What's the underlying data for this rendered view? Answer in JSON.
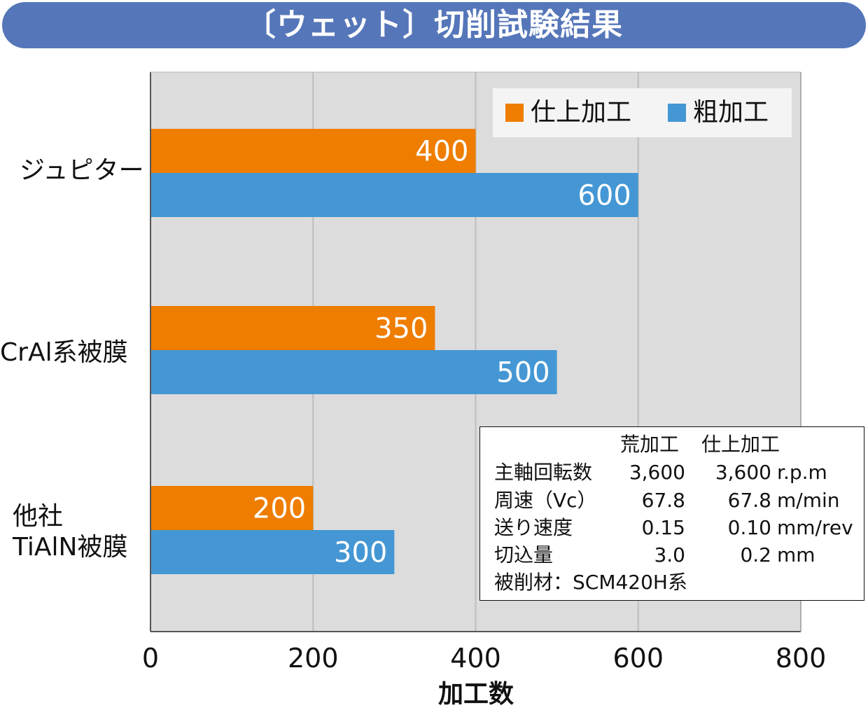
{
  "title": "〔ウェット〕切削試験結果",
  "chart_data": {
    "type": "bar",
    "orientation": "horizontal",
    "categories": [
      "ジュピター",
      "CrAl系被膜",
      "他社\nTiAlN被膜"
    ],
    "series": [
      {
        "name": "仕上加工",
        "values": [
          400,
          350,
          200
        ],
        "color": "#ee7d00"
      },
      {
        "name": "粗加工",
        "values": [
          600,
          500,
          300
        ],
        "color": "#4497d4"
      }
    ],
    "xlabel": "加工数",
    "xlim": [
      0,
      800
    ],
    "xticks": [
      "0",
      "200",
      "400",
      "600",
      "800"
    ],
    "grid": true,
    "legend": "top-right"
  },
  "conditions": {
    "headers": [
      "",
      "荒加工",
      "仕上加工",
      ""
    ],
    "rows": [
      [
        "主軸回転数",
        "3,600",
        "3,600",
        "r.p.m"
      ],
      [
        "周速（Vc）",
        "67.8",
        "67.8",
        "m/min"
      ],
      [
        "送り速度",
        "0.15",
        "0.10",
        "mm/rev"
      ],
      [
        "切込量",
        "3.0",
        "0.2",
        "mm"
      ]
    ],
    "material": "被削材：SCM420H系"
  }
}
